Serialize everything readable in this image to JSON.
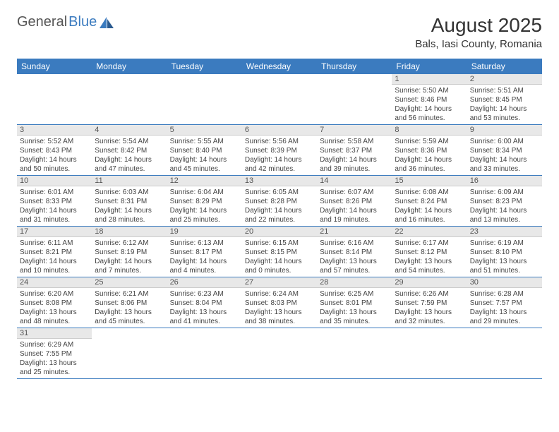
{
  "logo": {
    "part1": "General",
    "part2": "Blue"
  },
  "title": "August 2025",
  "location": "Bals, Iasi County, Romania",
  "colors": {
    "header_bg": "#3b7bbf",
    "header_fg": "#ffffff",
    "daynum_bg": "#e8e8e8",
    "row_border": "#3b7bbf"
  },
  "day_headers": [
    "Sunday",
    "Monday",
    "Tuesday",
    "Wednesday",
    "Thursday",
    "Friday",
    "Saturday"
  ],
  "weeks": [
    [
      {
        "n": "",
        "sr": "",
        "ss": "",
        "dl": ""
      },
      {
        "n": "",
        "sr": "",
        "ss": "",
        "dl": ""
      },
      {
        "n": "",
        "sr": "",
        "ss": "",
        "dl": ""
      },
      {
        "n": "",
        "sr": "",
        "ss": "",
        "dl": ""
      },
      {
        "n": "",
        "sr": "",
        "ss": "",
        "dl": ""
      },
      {
        "n": "1",
        "sr": "Sunrise: 5:50 AM",
        "ss": "Sunset: 8:46 PM",
        "dl": "Daylight: 14 hours and 56 minutes."
      },
      {
        "n": "2",
        "sr": "Sunrise: 5:51 AM",
        "ss": "Sunset: 8:45 PM",
        "dl": "Daylight: 14 hours and 53 minutes."
      }
    ],
    [
      {
        "n": "3",
        "sr": "Sunrise: 5:52 AM",
        "ss": "Sunset: 8:43 PM",
        "dl": "Daylight: 14 hours and 50 minutes."
      },
      {
        "n": "4",
        "sr": "Sunrise: 5:54 AM",
        "ss": "Sunset: 8:42 PM",
        "dl": "Daylight: 14 hours and 47 minutes."
      },
      {
        "n": "5",
        "sr": "Sunrise: 5:55 AM",
        "ss": "Sunset: 8:40 PM",
        "dl": "Daylight: 14 hours and 45 minutes."
      },
      {
        "n": "6",
        "sr": "Sunrise: 5:56 AM",
        "ss": "Sunset: 8:39 PM",
        "dl": "Daylight: 14 hours and 42 minutes."
      },
      {
        "n": "7",
        "sr": "Sunrise: 5:58 AM",
        "ss": "Sunset: 8:37 PM",
        "dl": "Daylight: 14 hours and 39 minutes."
      },
      {
        "n": "8",
        "sr": "Sunrise: 5:59 AM",
        "ss": "Sunset: 8:36 PM",
        "dl": "Daylight: 14 hours and 36 minutes."
      },
      {
        "n": "9",
        "sr": "Sunrise: 6:00 AM",
        "ss": "Sunset: 8:34 PM",
        "dl": "Daylight: 14 hours and 33 minutes."
      }
    ],
    [
      {
        "n": "10",
        "sr": "Sunrise: 6:01 AM",
        "ss": "Sunset: 8:33 PM",
        "dl": "Daylight: 14 hours and 31 minutes."
      },
      {
        "n": "11",
        "sr": "Sunrise: 6:03 AM",
        "ss": "Sunset: 8:31 PM",
        "dl": "Daylight: 14 hours and 28 minutes."
      },
      {
        "n": "12",
        "sr": "Sunrise: 6:04 AM",
        "ss": "Sunset: 8:29 PM",
        "dl": "Daylight: 14 hours and 25 minutes."
      },
      {
        "n": "13",
        "sr": "Sunrise: 6:05 AM",
        "ss": "Sunset: 8:28 PM",
        "dl": "Daylight: 14 hours and 22 minutes."
      },
      {
        "n": "14",
        "sr": "Sunrise: 6:07 AM",
        "ss": "Sunset: 8:26 PM",
        "dl": "Daylight: 14 hours and 19 minutes."
      },
      {
        "n": "15",
        "sr": "Sunrise: 6:08 AM",
        "ss": "Sunset: 8:24 PM",
        "dl": "Daylight: 14 hours and 16 minutes."
      },
      {
        "n": "16",
        "sr": "Sunrise: 6:09 AM",
        "ss": "Sunset: 8:23 PM",
        "dl": "Daylight: 14 hours and 13 minutes."
      }
    ],
    [
      {
        "n": "17",
        "sr": "Sunrise: 6:11 AM",
        "ss": "Sunset: 8:21 PM",
        "dl": "Daylight: 14 hours and 10 minutes."
      },
      {
        "n": "18",
        "sr": "Sunrise: 6:12 AM",
        "ss": "Sunset: 8:19 PM",
        "dl": "Daylight: 14 hours and 7 minutes."
      },
      {
        "n": "19",
        "sr": "Sunrise: 6:13 AM",
        "ss": "Sunset: 8:17 PM",
        "dl": "Daylight: 14 hours and 4 minutes."
      },
      {
        "n": "20",
        "sr": "Sunrise: 6:15 AM",
        "ss": "Sunset: 8:15 PM",
        "dl": "Daylight: 14 hours and 0 minutes."
      },
      {
        "n": "21",
        "sr": "Sunrise: 6:16 AM",
        "ss": "Sunset: 8:14 PM",
        "dl": "Daylight: 13 hours and 57 minutes."
      },
      {
        "n": "22",
        "sr": "Sunrise: 6:17 AM",
        "ss": "Sunset: 8:12 PM",
        "dl": "Daylight: 13 hours and 54 minutes."
      },
      {
        "n": "23",
        "sr": "Sunrise: 6:19 AM",
        "ss": "Sunset: 8:10 PM",
        "dl": "Daylight: 13 hours and 51 minutes."
      }
    ],
    [
      {
        "n": "24",
        "sr": "Sunrise: 6:20 AM",
        "ss": "Sunset: 8:08 PM",
        "dl": "Daylight: 13 hours and 48 minutes."
      },
      {
        "n": "25",
        "sr": "Sunrise: 6:21 AM",
        "ss": "Sunset: 8:06 PM",
        "dl": "Daylight: 13 hours and 45 minutes."
      },
      {
        "n": "26",
        "sr": "Sunrise: 6:23 AM",
        "ss": "Sunset: 8:04 PM",
        "dl": "Daylight: 13 hours and 41 minutes."
      },
      {
        "n": "27",
        "sr": "Sunrise: 6:24 AM",
        "ss": "Sunset: 8:03 PM",
        "dl": "Daylight: 13 hours and 38 minutes."
      },
      {
        "n": "28",
        "sr": "Sunrise: 6:25 AM",
        "ss": "Sunset: 8:01 PM",
        "dl": "Daylight: 13 hours and 35 minutes."
      },
      {
        "n": "29",
        "sr": "Sunrise: 6:26 AM",
        "ss": "Sunset: 7:59 PM",
        "dl": "Daylight: 13 hours and 32 minutes."
      },
      {
        "n": "30",
        "sr": "Sunrise: 6:28 AM",
        "ss": "Sunset: 7:57 PM",
        "dl": "Daylight: 13 hours and 29 minutes."
      }
    ],
    [
      {
        "n": "31",
        "sr": "Sunrise: 6:29 AM",
        "ss": "Sunset: 7:55 PM",
        "dl": "Daylight: 13 hours and 25 minutes."
      },
      {
        "n": "",
        "sr": "",
        "ss": "",
        "dl": ""
      },
      {
        "n": "",
        "sr": "",
        "ss": "",
        "dl": ""
      },
      {
        "n": "",
        "sr": "",
        "ss": "",
        "dl": ""
      },
      {
        "n": "",
        "sr": "",
        "ss": "",
        "dl": ""
      },
      {
        "n": "",
        "sr": "",
        "ss": "",
        "dl": ""
      },
      {
        "n": "",
        "sr": "",
        "ss": "",
        "dl": ""
      }
    ]
  ]
}
